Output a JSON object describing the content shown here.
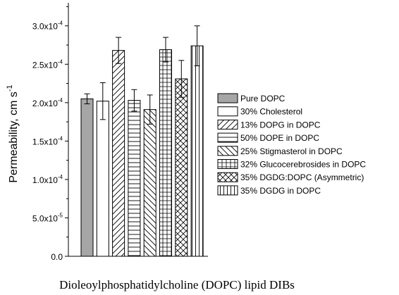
{
  "chart_data": {
    "type": "bar",
    "xlabel": "Dioleoylphosphatidylcholine (DOPC) lipid DIBs",
    "ylabel_prefix": "Permeability, cm s",
    "ylabel_exp": "-1",
    "ylim": [
      0,
      0.00033
    ],
    "yticks": [
      {
        "value": 0.0,
        "mantissa": "0.0",
        "exp": ""
      },
      {
        "value": 5e-05,
        "mantissa": "5.0x10",
        "exp": "-5"
      },
      {
        "value": 0.0001,
        "mantissa": "1.0x10",
        "exp": "-4"
      },
      {
        "value": 0.00015,
        "mantissa": "1.5x10",
        "exp": "-4"
      },
      {
        "value": 0.0002,
        "mantissa": "2.0x10",
        "exp": "-4"
      },
      {
        "value": 0.00025,
        "mantissa": "2.5x10",
        "exp": "-4"
      },
      {
        "value": 0.0003,
        "mantissa": "3.0x10",
        "exp": "-4"
      }
    ],
    "legend_position": "right",
    "series": [
      {
        "name": "Pure DOPC",
        "value": 0.000205,
        "error": 6.5e-06,
        "pattern": "solid-gray"
      },
      {
        "name": "30% Cholesterol",
        "value": 0.000202,
        "error": 2.4e-05,
        "pattern": "empty"
      },
      {
        "name": "13% DOPG in DOPC",
        "value": 0.000268,
        "error": 1.7e-05,
        "pattern": "diagonal-up"
      },
      {
        "name": "50% DOPE in DOPC",
        "value": 0.000203,
        "error": 1.4e-05,
        "pattern": "horizontal"
      },
      {
        "name": "25% Stigmasterol in DOPC",
        "value": 0.000191,
        "error": 1.9e-05,
        "pattern": "diagonal-down"
      },
      {
        "name": "32% Glucocerebrosides in DOPC",
        "value": 0.000269,
        "error": 1.6e-05,
        "pattern": "grid"
      },
      {
        "name": "35% DGDG:DOPC (Asymmetric)",
        "value": 0.000231,
        "error": 2.4e-05,
        "pattern": "crosshatch"
      },
      {
        "name": "35% DGDG in DOPC",
        "value": 0.000274,
        "error": 2.6e-05,
        "pattern": "vertical"
      }
    ]
  }
}
